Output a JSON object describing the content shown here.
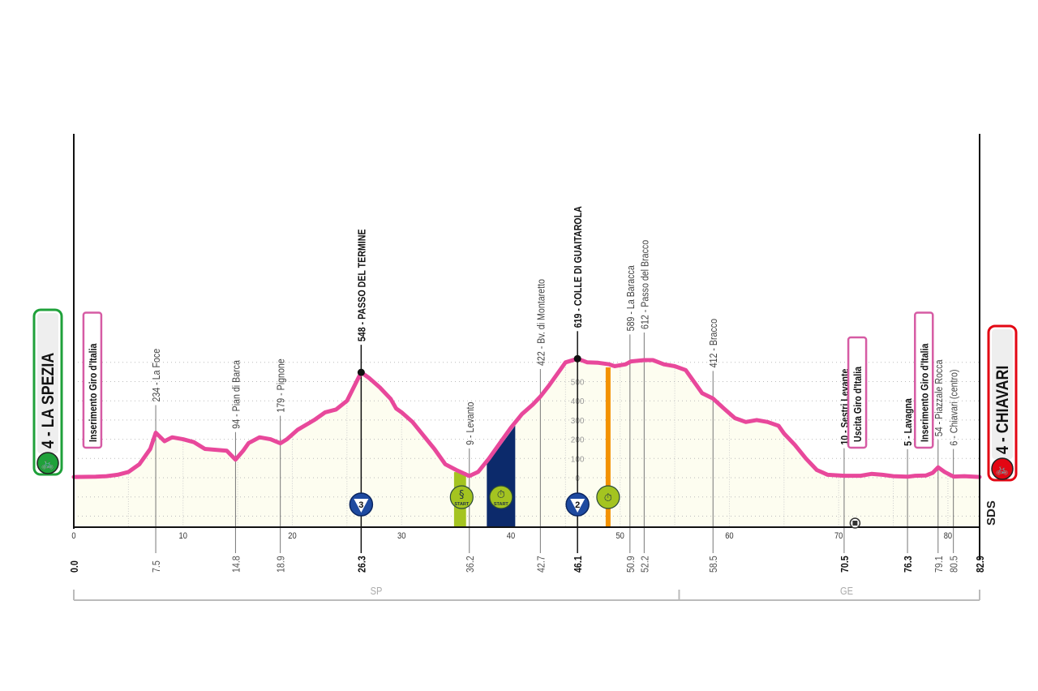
{
  "chart_data": {
    "type": "area",
    "xlabel": "",
    "ylabel": "",
    "xlim": [
      0,
      82.9
    ],
    "x_ticks": [
      0,
      10,
      20,
      30,
      40,
      50,
      60,
      70,
      80
    ],
    "elevation_scale_ticks": [
      0,
      100,
      200,
      300,
      400,
      500
    ],
    "grid": true,
    "colors": {
      "profile_line": "#e8489b",
      "profile_fill": "#fdfdf0",
      "start": "#1fa13a",
      "finish": "#e30613",
      "gpm": "#1e4aa0",
      "sprint_band": "#a4c420",
      "timed_band": "#0c2a6b",
      "timed_finish": "#f39200"
    },
    "profile": {
      "km": [
        0,
        2,
        3,
        4,
        5,
        6,
        7,
        7.5,
        8.3,
        9,
        10,
        11,
        12,
        13,
        14,
        14.8,
        15.5,
        16,
        17,
        18,
        18.9,
        19.5,
        20.5,
        22,
        23,
        24,
        25,
        26.3,
        27,
        28,
        29,
        29.5,
        30,
        31,
        32,
        33,
        34,
        35,
        36.2,
        37,
        38,
        39,
        40,
        41,
        42,
        42.7,
        43.5,
        44.5,
        45,
        46.1,
        47,
        48,
        49,
        49.5,
        50.5,
        51,
        52.2,
        53,
        54,
        55,
        56,
        57,
        57.5,
        58.5,
        59.5,
        60.5,
        61.5,
        62.5,
        63.5,
        64.5,
        65,
        66,
        67,
        68,
        69,
        70.5,
        72,
        73,
        74,
        75,
        76.3,
        77,
        78,
        78.6,
        79.1,
        79.7,
        80.5,
        81.5,
        82.9
      ],
      "elevation": [
        4,
        5,
        8,
        15,
        30,
        70,
        150,
        234,
        190,
        210,
        200,
        185,
        150,
        145,
        140,
        94,
        140,
        180,
        210,
        200,
        179,
        200,
        250,
        300,
        340,
        355,
        400,
        548,
        520,
        470,
        410,
        360,
        340,
        290,
        220,
        150,
        70,
        40,
        9,
        30,
        100,
        180,
        260,
        330,
        380,
        422,
        480,
        560,
        600,
        619,
        600,
        598,
        590,
        580,
        590,
        605,
        612,
        612,
        590,
        580,
        560,
        480,
        440,
        412,
        360,
        310,
        290,
        300,
        290,
        270,
        230,
        170,
        100,
        40,
        15,
        10,
        10,
        20,
        15,
        8,
        5,
        10,
        12,
        25,
        54,
        30,
        6,
        8,
        4
      ]
    },
    "start": {
      "label": "4 - LA SPEZIA",
      "icon": "cyclist-start-icon"
    },
    "finish": {
      "label": "4 - CHIAVARI",
      "icon": "cyclist-finish-icon"
    },
    "points": [
      {
        "km": 7.5,
        "km_label": "7.5",
        "label": "234 - La Foce",
        "bold": false
      },
      {
        "km": 14.8,
        "km_label": "14.8",
        "label": "94 - Pian di Barca",
        "bold": false
      },
      {
        "km": 18.9,
        "km_label": "18.9",
        "label": "179 - Pignone",
        "bold": false
      },
      {
        "km": 26.3,
        "km_label": "26.3",
        "label": "548 - PASSO DEL TERMINE",
        "bold": true,
        "summit": true
      },
      {
        "km": 36.2,
        "km_label": "36.2",
        "label": "9 - Levanto",
        "bold": false
      },
      {
        "km": 42.7,
        "km_label": "42.7",
        "label": "422 - Bv. di Montaretto",
        "bold": false
      },
      {
        "km": 46.1,
        "km_label": "46.1",
        "label": "619 - COLLE DI GUAITAROLA",
        "bold": true,
        "summit": true
      },
      {
        "km": 50.9,
        "km_label": "50.9",
        "label": "589 - La Baracca",
        "bold": false
      },
      {
        "km": 52.2,
        "km_label": "52.2",
        "label": "612 - Passo del Bracco",
        "bold": false
      },
      {
        "km": 58.5,
        "km_label": "58.5",
        "label": "412 - Bracco",
        "bold": false
      },
      {
        "km": 70.5,
        "km_label": "70.5",
        "label": "10 - Sestri Levante",
        "bold": true
      },
      {
        "km": 76.3,
        "km_label": "76.3",
        "label": "5 - Lavagna",
        "bold": true
      },
      {
        "km": 79.1,
        "km_label": "79.1",
        "label": "54 - Piazzale Rocca",
        "bold": false
      },
      {
        "km": 80.5,
        "km_label": "80.5",
        "label": "6 - Chiavari (centro)",
        "bold": false
      }
    ],
    "start_km_label": "0.0",
    "finish_km_label": "82.9",
    "route_notes": [
      {
        "km": 1.7,
        "label": "Inserimento Giro d'Italia"
      },
      {
        "km": 71.7,
        "label": "Uscita Giro d'Italia"
      },
      {
        "km": 77.8,
        "label": "Inserimento Giro d'Italia"
      }
    ],
    "gpm": [
      {
        "km": 26.3,
        "category": "3"
      },
      {
        "km": 46.1,
        "category": "2"
      }
    ],
    "sprint_start": {
      "km_from": 34.8,
      "km_to": 35.9,
      "label": "START",
      "icon": "sprint-start-icon"
    },
    "timed_section": {
      "km_from": 37.8,
      "km_to": 40.4,
      "label": "START",
      "icon": "stopwatch-start-icon"
    },
    "timed_finish": {
      "km": 48.9,
      "icon": "stopwatch-finish-icon"
    },
    "tunnel": {
      "km": 71.5,
      "icon": "tunnel-icon"
    },
    "provinces": [
      {
        "label": "SP",
        "km_from": 0,
        "km_to": 55.4
      },
      {
        "label": "GE",
        "km_from": 55.4,
        "km_to": 82.9
      }
    ],
    "logo": "SDS"
  }
}
